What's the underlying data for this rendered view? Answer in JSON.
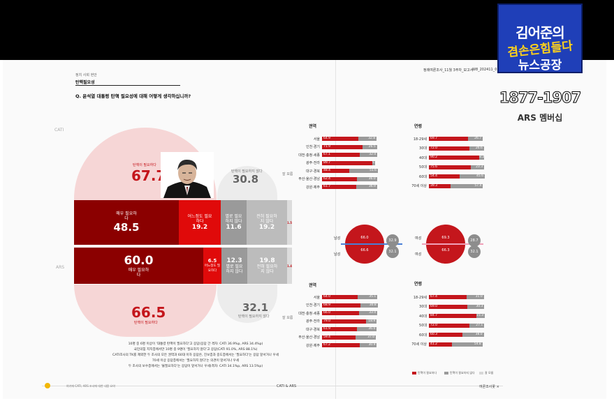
{
  "colors": {
    "accent": "#c4161c",
    "dark_red": "#8b0000",
    "grey": "#9a9a9a",
    "light_grey": "#c9c9c9"
  },
  "overlay": {
    "logo_line1": "김어준의",
    "logo_line2": "겸손은힘들다",
    "logo_line3": "뉴스공장",
    "phone": "1877-1907",
    "ars_label": "ARS 멤버십"
  },
  "doc": {
    "section": "정치 사회 현안",
    "topic": "탄핵필요성",
    "question": "Q. 윤석열 대통령 탄핵 필요성에 대해 어떻게 생각하십니까?",
    "report_header": "정례여론조사_11월 3주차_보고서",
    "report_week": "W8_202411_0",
    "cati_label": "CATI",
    "ars_side_label": "ARS",
    "footer_center": "CATI & ARS",
    "footer_right": "여론조사꽃 ×",
    "footer_left": "여기에 CATI, ARS 조사에 대한 내용 요약"
  },
  "cati": {
    "need_label": "탄핵이 필요하다",
    "need_total": "67.7",
    "noneed_label": "탄핵이 필요하지 않다",
    "noneed_total": "30.8",
    "s1_label": "매우 필요하다",
    "s1": "48.5",
    "s2_label": "어느정도 필요하다",
    "s2": "19.2",
    "s3_label": "별로 필요하지 않다",
    "s3": "11.6",
    "s4_label": "전혀 필요하지 않다",
    "s4": "19.2",
    "dk": "1.5"
  },
  "ars": {
    "need_label": "탄핵이 필요하다",
    "need_total": "66.5",
    "noneed_label": "탄핵이 필요하지 않다",
    "noneed_total": "32.1",
    "s1_label": "매우 필요하다",
    "s1": "60.0",
    "s2_label": "어느정도 필요하다",
    "s2": "6.5",
    "s3_label": "별로 필요하지 않다",
    "s3": "12.3",
    "s4_label": "전혀 필요하지 않다",
    "s4": "19.8",
    "dk": "1.4"
  },
  "dk_label": "잘 모름",
  "panels": {
    "region_title": "권역",
    "age_title": "연령",
    "cati_region": [
      {
        "label": "서울",
        "need": "64.9",
        "noneed": "32.8"
      },
      {
        "label": "인천·경기",
        "need": "71.9",
        "noneed": "26.5"
      },
      {
        "label": "대전·충청·세종",
        "need": "67.1",
        "noneed": "32.0"
      },
      {
        "label": "광주·전라",
        "need": "89.7",
        "noneed": "5.4"
      },
      {
        "label": "대구·경북",
        "need": "48.4",
        "noneed": "51.6"
      },
      {
        "label": "부산·울산·경남",
        "need": "62.4",
        "noneed": "36.0"
      },
      {
        "label": "강원·제주",
        "need": "61.7",
        "noneed": "36.9"
      }
    ],
    "cati_age": [
      {
        "label": "18-29세",
        "need": "69.7",
        "noneed": "26.7"
      },
      {
        "label": "30대",
        "need": "72.0",
        "noneed": "26.6"
      },
      {
        "label": "40대",
        "need": "90.2",
        "noneed": "8.2"
      },
      {
        "label": "50대",
        "need": "75.6",
        "noneed": "23.3"
      },
      {
        "label": "60대",
        "need": "54.4",
        "noneed": "45.6"
      },
      {
        "label": "70세 이상",
        "need": "39.3",
        "noneed": "57.4"
      }
    ],
    "ars_region": [
      {
        "label": "서울",
        "need": "64.0",
        "noneed": "35.1"
      },
      {
        "label": "인천·경기",
        "need": "68.9",
        "noneed": "30.8"
      },
      {
        "label": "대전·충청·세종",
        "need": "66.0",
        "noneed": "33.0"
      },
      {
        "label": "광주·전라",
        "need": "79.0",
        "noneed": "18.9"
      },
      {
        "label": "대구·경북",
        "need": "61.9",
        "noneed": "36.0"
      },
      {
        "label": "부산·울산·경남",
        "need": "59.4",
        "noneed": "37.0"
      },
      {
        "label": "강원·제주",
        "need": "67.2",
        "noneed": "30.9"
      }
    ],
    "ars_age": [
      {
        "label": "18-29세",
        "need": "67.4",
        "noneed": "31.0"
      },
      {
        "label": "30대",
        "need": "69.0",
        "noneed": "30.3"
      },
      {
        "label": "40대",
        "need": "84.7",
        "noneed": "15.3"
      },
      {
        "label": "50대",
        "need": "72.0",
        "noneed": "27.1"
      },
      {
        "label": "60대",
        "need": "60.3",
        "noneed": "38.0"
      },
      {
        "label": "70세 이상",
        "need": "41.2",
        "noneed": "54.8"
      }
    ]
  },
  "gender": {
    "male": "남성",
    "female": "여성",
    "cati_male_need": "66.0",
    "cati_male_noneed": "32.9",
    "ars_male_need": "66.6",
    "ars_male_noneed": "32.1",
    "cati_female_need": "69.3",
    "cati_female_noneed": "28.7",
    "ars_female_need": "66.3",
    "ars_female_noneed": "32.1"
  },
  "legend": {
    "need": "탄핵이 필요하다",
    "noneed": "탄핵이 필요하지 않다",
    "dk": "잘 모름"
  },
  "notes": [
    "10명 중 6명 이상이 '대통령 탄핵이 필요하다'고 응답(응답 간 격차: CATI 36.9%p, ARS 34.4%p)",
    "국민의힘 지지층에서만 10명 중 9명이 '필요하지 않다'고 응답(CATI 91.0%, ARS 88.1%)",
    "CATI조사의 TK를 제외한 두 조사의 모든 권역과 60대 이하 응답은, 진보층과 중도층에서는 '필요하다'는 응답 앞서거나 우세",
    "70세 이상 응답층에서는 '필요하지 않다'는 의견이 앞서거나 우세",
    "두 조사의 보수층에서는 '불필요하다'는 응답이 앞서거나 우세(격차: CATI 34.1%p, ARS 13.5%p)"
  ]
}
